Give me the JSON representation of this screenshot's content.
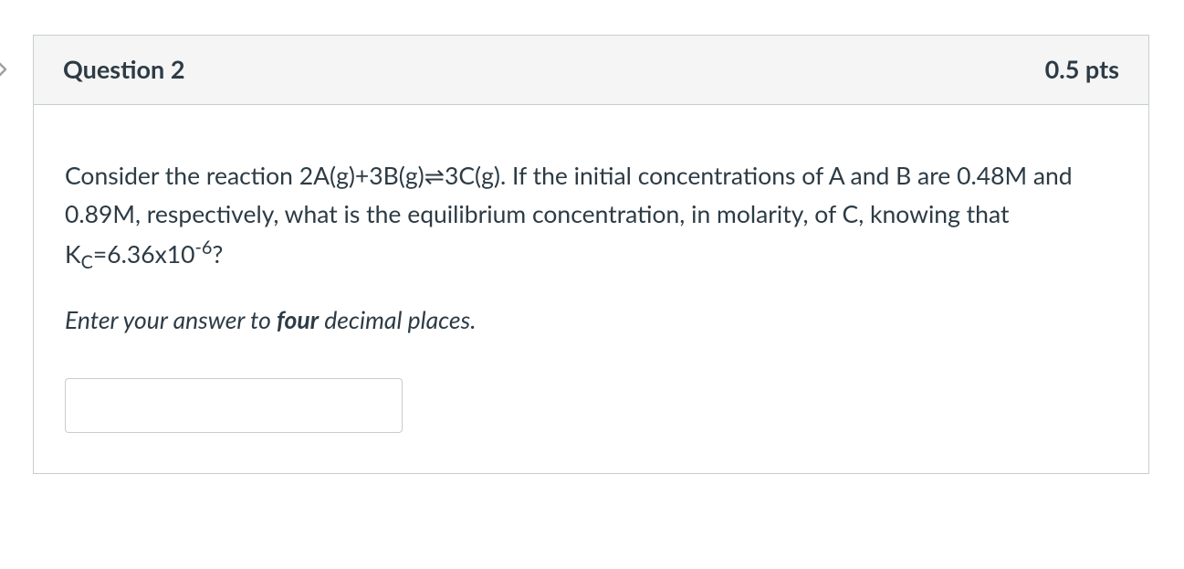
{
  "card": {
    "title": "Question 2",
    "points": "0.5 pts",
    "body_html": "Consider the reaction 2A(g)+3B(g)⇌3C(g). If the initial concentrations of A and B are 0.48M and 0.89M, respectively, what is the equilibrium concentration, in molarity, of C, knowing that K<sub>C</sub>=6.36x10<sup>-6</sup>?",
    "instruction_pre": "Enter your answer to ",
    "instruction_bold": "four",
    "instruction_post": " decimal places.",
    "input_value": ""
  },
  "colors": {
    "border": "#c7cdd1",
    "header_bg": "#f5f5f5",
    "text": "#2d3b45",
    "white": "#ffffff",
    "arrow_stroke": "#919191"
  }
}
